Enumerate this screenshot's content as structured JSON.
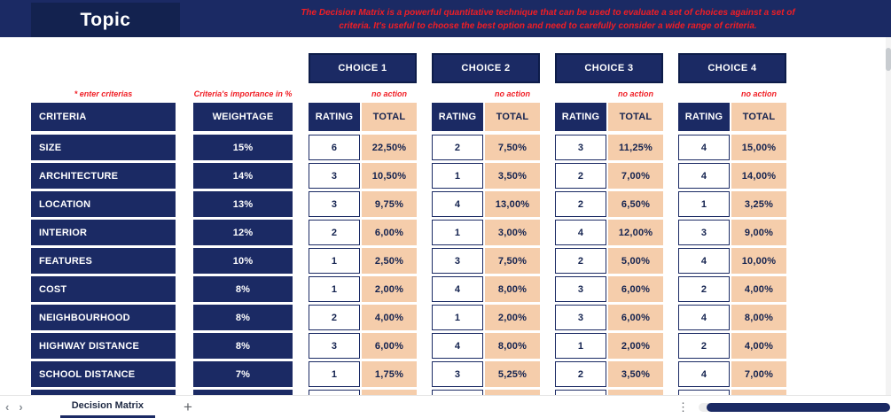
{
  "header": {
    "title": "Topic",
    "description": "The Decision Matrix is a powerful quantitative technique that can be used to evaluate a set of choices against a set of criteria. It's useful to choose the best option and need to carefully consider a wide range of criteria."
  },
  "annotations": {
    "enter_criterias": "* enter criterias",
    "importance": "Criteria's importance in %",
    "no_action": "no action"
  },
  "table": {
    "headers": {
      "criteria": "CRITERIA",
      "weightage": "WEIGHTAGE",
      "rating": "RATING",
      "total": "TOTAL"
    },
    "choices": [
      "CHOICE 1",
      "CHOICE 2",
      "CHOICE 3",
      "CHOICE 4"
    ],
    "rows": [
      {
        "criteria": "SIZE",
        "weightage": "15%",
        "ratings": [
          "6",
          "2",
          "3",
          "4"
        ],
        "totals": [
          "22,50%",
          "7,50%",
          "11,25%",
          "15,00%"
        ]
      },
      {
        "criteria": "ARCHITECTURE",
        "weightage": "14%",
        "ratings": [
          "3",
          "1",
          "2",
          "4"
        ],
        "totals": [
          "10,50%",
          "3,50%",
          "7,00%",
          "14,00%"
        ]
      },
      {
        "criteria": "LOCATION",
        "weightage": "13%",
        "ratings": [
          "3",
          "4",
          "2",
          "1"
        ],
        "totals": [
          "9,75%",
          "13,00%",
          "6,50%",
          "3,25%"
        ]
      },
      {
        "criteria": "INTERIOR",
        "weightage": "12%",
        "ratings": [
          "2",
          "1",
          "4",
          "3"
        ],
        "totals": [
          "6,00%",
          "3,00%",
          "12,00%",
          "9,00%"
        ]
      },
      {
        "criteria": "FEATURES",
        "weightage": "10%",
        "ratings": [
          "1",
          "3",
          "2",
          "4"
        ],
        "totals": [
          "2,50%",
          "7,50%",
          "5,00%",
          "10,00%"
        ]
      },
      {
        "criteria": "COST",
        "weightage": "8%",
        "ratings": [
          "1",
          "4",
          "3",
          "2"
        ],
        "totals": [
          "2,00%",
          "8,00%",
          "6,00%",
          "4,00%"
        ]
      },
      {
        "criteria": "NEIGHBOURHOOD",
        "weightage": "8%",
        "ratings": [
          "2",
          "1",
          "3",
          "4"
        ],
        "totals": [
          "4,00%",
          "2,00%",
          "6,00%",
          "8,00%"
        ]
      },
      {
        "criteria": "HIGHWAY DISTANCE",
        "weightage": "8%",
        "ratings": [
          "3",
          "4",
          "1",
          "2"
        ],
        "totals": [
          "6,00%",
          "8,00%",
          "2,00%",
          "4,00%"
        ]
      },
      {
        "criteria": "SCHOOL DISTANCE",
        "weightage": "7%",
        "ratings": [
          "1",
          "3",
          "2",
          "4"
        ],
        "totals": [
          "1,75%",
          "5,25%",
          "3,50%",
          "7,00%"
        ]
      }
    ]
  },
  "tab_bar": {
    "sheet_tab": "Decision Matrix",
    "icons": {
      "prev": "‹",
      "next": "›",
      "add": "+",
      "more": "⋮"
    }
  },
  "colors": {
    "navy": "#1b2a64",
    "peach": "#f5cdab",
    "red": "#f01e25"
  }
}
